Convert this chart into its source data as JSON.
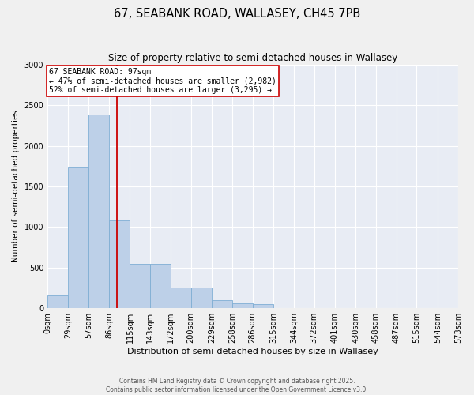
{
  "title": "67, SEABANK ROAD, WALLASEY, CH45 7PB",
  "subtitle": "Size of property relative to semi-detached houses in Wallasey",
  "xlabel": "Distribution of semi-detached houses by size in Wallasey",
  "ylabel": "Number of semi-detached properties",
  "bar_color": "#bdd0e8",
  "bar_edge_color": "#7faed4",
  "bg_color": "#e8ecf4",
  "grid_color": "#ffffff",
  "vline_x": 97,
  "vline_color": "#cc0000",
  "annotation_title": "67 SEABANK ROAD: 97sqm",
  "annotation_line1": "← 47% of semi-detached houses are smaller (2,982)",
  "annotation_line2": "52% of semi-detached houses are larger (3,295) →",
  "annotation_box_color": "#ffffff",
  "annotation_box_edge": "#cc0000",
  "bins": [
    0,
    29,
    57,
    86,
    115,
    143,
    172,
    200,
    229,
    258,
    286,
    315,
    344,
    372,
    401,
    430,
    458,
    487,
    515,
    544,
    573
  ],
  "bin_labels": [
    "0sqm",
    "29sqm",
    "57sqm",
    "86sqm",
    "115sqm",
    "143sqm",
    "172sqm",
    "200sqm",
    "229sqm",
    "258sqm",
    "286sqm",
    "315sqm",
    "344sqm",
    "372sqm",
    "401sqm",
    "430sqm",
    "458sqm",
    "487sqm",
    "515sqm",
    "544sqm",
    "573sqm"
  ],
  "bar_heights": [
    160,
    1730,
    2380,
    1080,
    550,
    550,
    250,
    250,
    100,
    60,
    50,
    0,
    0,
    0,
    0,
    0,
    0,
    0,
    0,
    0
  ],
  "ylim": [
    0,
    3000
  ],
  "yticks": [
    0,
    500,
    1000,
    1500,
    2000,
    2500,
    3000
  ],
  "footer_line1": "Contains HM Land Registry data © Crown copyright and database right 2025.",
  "footer_line2": "Contains public sector information licensed under the Open Government Licence v3.0."
}
